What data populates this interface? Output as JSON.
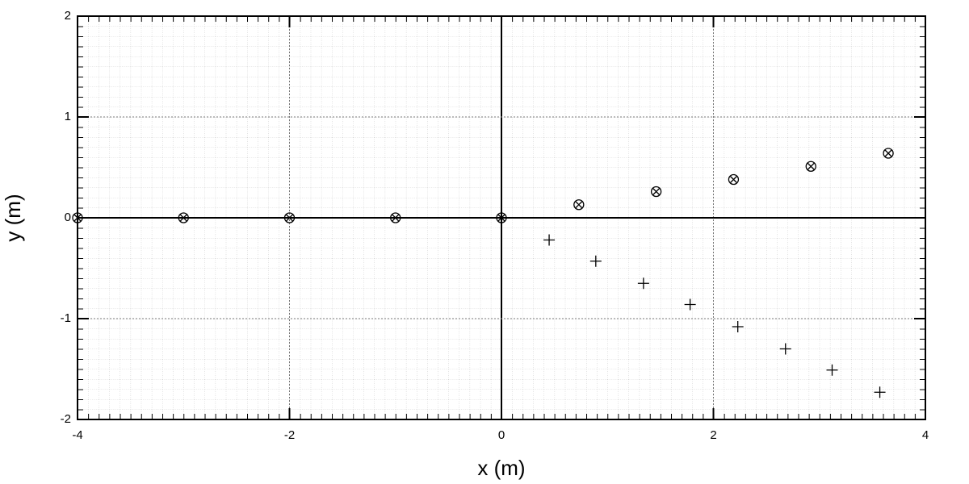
{
  "chart_data": {
    "type": "scatter",
    "x_label": "x (m)",
    "y_label": "y (m)",
    "xlim": [
      -4,
      4
    ],
    "ylim": [
      -2,
      2
    ],
    "xticks": [
      -4,
      -2,
      0,
      2,
      4
    ],
    "yticks": [
      -2,
      -1,
      0,
      1,
      2
    ],
    "grid": true,
    "series": [
      {
        "marker": "circle-x",
        "color": "#000000",
        "x": [
          -4,
          -3,
          -2,
          -1,
          0,
          0.73,
          1.46,
          2.19,
          2.92,
          3.65
        ],
        "values": [
          0,
          0,
          0,
          0,
          0,
          0.13,
          0.26,
          0.38,
          0.51,
          0.64
        ]
      },
      {
        "marker": "plus",
        "color": "#000000",
        "x": [
          0.45,
          0.89,
          1.34,
          1.78,
          2.23,
          2.68,
          3.12,
          3.57
        ],
        "values": [
          -0.22,
          -0.43,
          -0.65,
          -0.86,
          -1.08,
          -1.3,
          -1.51,
          -1.73
        ]
      }
    ]
  }
}
